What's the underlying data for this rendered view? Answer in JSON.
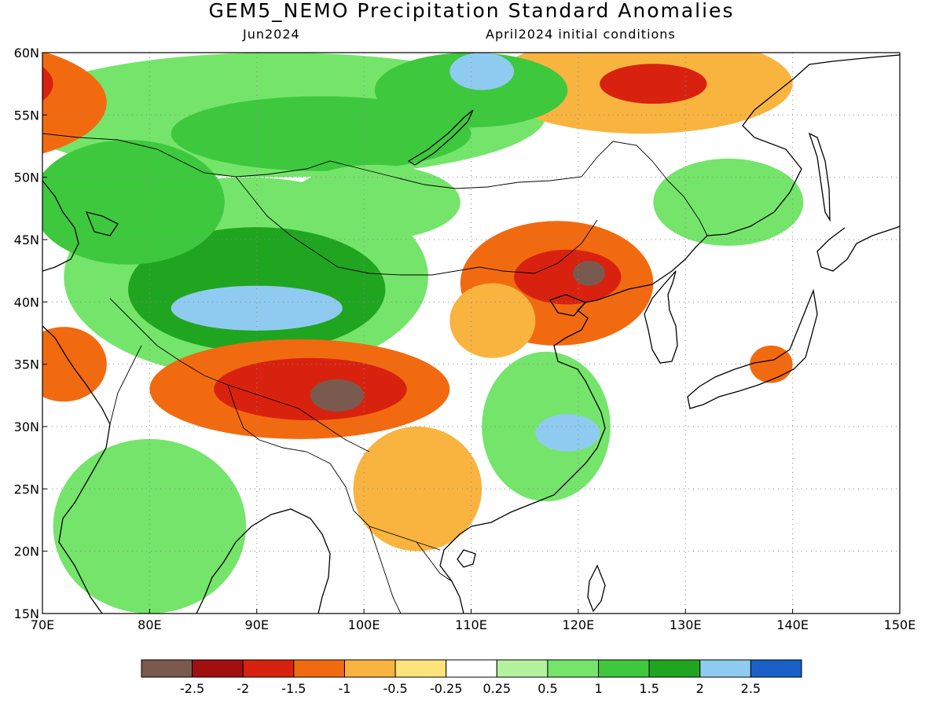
{
  "title": "GEM5_NEMO Precipitation Standard Anomalies",
  "subtitle_left": "Jun2024",
  "subtitle_right": "April2024 initial conditions",
  "chart_data": {
    "type": "heatmap",
    "xlim": [
      70,
      150
    ],
    "ylim": [
      15,
      60
    ],
    "x_ticks": [
      {
        "value": 70,
        "label": "70E"
      },
      {
        "value": 80,
        "label": "80E"
      },
      {
        "value": 90,
        "label": "90E"
      },
      {
        "value": 100,
        "label": "100E"
      },
      {
        "value": 110,
        "label": "110E"
      },
      {
        "value": 120,
        "label": "120E"
      },
      {
        "value": 130,
        "label": "130E"
      },
      {
        "value": 140,
        "label": "140E"
      },
      {
        "value": 150,
        "label": "150E"
      }
    ],
    "y_ticks": [
      {
        "value": 15,
        "label": "15N"
      },
      {
        "value": 20,
        "label": "20N"
      },
      {
        "value": 25,
        "label": "25N"
      },
      {
        "value": 30,
        "label": "30N"
      },
      {
        "value": 35,
        "label": "35N"
      },
      {
        "value": 40,
        "label": "40N"
      },
      {
        "value": 45,
        "label": "45N"
      },
      {
        "value": 50,
        "label": "50N"
      },
      {
        "value": 55,
        "label": "55N"
      },
      {
        "value": 60,
        "label": "60N"
      }
    ],
    "grid": "dotted",
    "colorbar": {
      "colors": [
        "#7a5a4e",
        "#a10f0f",
        "#d8220f",
        "#f26a10",
        "#f9b43f",
        "#fce37a",
        "#ffffff",
        "#b4f29e",
        "#74e56a",
        "#3ec83e",
        "#20a520",
        "#8fcbf0",
        "#1a60c8"
      ],
      "labels": [
        "-2.5",
        "-2",
        "-1.5",
        "-1",
        "-0.5",
        "-0.25",
        "0.25",
        "0.5",
        "1",
        "1.5",
        "2",
        "2.5"
      ]
    },
    "anomaly_regions": [
      {
        "lon": 62,
        "lat": 56,
        "rx": 14,
        "ry": 5,
        "value": -1.2
      },
      {
        "lon": 65,
        "lat": 57.5,
        "rx": 6,
        "ry": 2.5,
        "value": -1.7
      },
      {
        "lon": 126,
        "lat": 57.5,
        "rx": 14,
        "ry": 4,
        "value": -0.7
      },
      {
        "lon": 127,
        "lat": 57.5,
        "rx": 5,
        "ry": 1.6,
        "value": -1.6
      },
      {
        "lon": 92,
        "lat": 55,
        "rx": 25,
        "ry": 5,
        "value": 0.7
      },
      {
        "lon": 96,
        "lat": 53.5,
        "rx": 14,
        "ry": 3,
        "value": 1.2
      },
      {
        "lon": 110,
        "lat": 57,
        "rx": 9,
        "ry": 3,
        "value": 1.1
      },
      {
        "lon": 111,
        "lat": 58.5,
        "rx": 3,
        "ry": 1.5,
        "value": 2.3
      },
      {
        "lon": 89,
        "lat": 42,
        "rx": 17,
        "ry": 8,
        "value": 0.9
      },
      {
        "lon": 90,
        "lat": 41,
        "rx": 12,
        "ry": 5,
        "value": 1.5
      },
      {
        "lon": 90,
        "lat": 39.5,
        "rx": 8,
        "ry": 1.8,
        "value": 2.2
      },
      {
        "lon": 78,
        "lat": 48,
        "rx": 9,
        "ry": 5,
        "value": 1.0
      },
      {
        "lon": 101,
        "lat": 48,
        "rx": 8,
        "ry": 3,
        "value": 0.8
      },
      {
        "lon": 134,
        "lat": 48,
        "rx": 7,
        "ry": 3.5,
        "value": 0.9
      },
      {
        "lon": 118,
        "lat": 41.5,
        "rx": 9,
        "ry": 5,
        "value": -1.1
      },
      {
        "lon": 119,
        "lat": 42,
        "rx": 5,
        "ry": 2.2,
        "value": -1.7
      },
      {
        "lon": 121,
        "lat": 42.3,
        "rx": 1.5,
        "ry": 1,
        "value": -2.6
      },
      {
        "lon": 112,
        "lat": 38.5,
        "rx": 4,
        "ry": 3,
        "value": -1.0
      },
      {
        "lon": 94,
        "lat": 33,
        "rx": 14,
        "ry": 4,
        "value": -1.2
      },
      {
        "lon": 95,
        "lat": 33,
        "rx": 9,
        "ry": 2.5,
        "value": -1.8
      },
      {
        "lon": 97.5,
        "lat": 32.5,
        "rx": 2.5,
        "ry": 1.3,
        "value": -2.6
      },
      {
        "lon": 72,
        "lat": 35,
        "rx": 4,
        "ry": 3,
        "value": -1.4
      },
      {
        "lon": 105,
        "lat": 25,
        "rx": 6,
        "ry": 5,
        "value": -1.0
      },
      {
        "lon": 117,
        "lat": 30,
        "rx": 6,
        "ry": 6,
        "value": 0.9
      },
      {
        "lon": 119,
        "lat": 29.5,
        "rx": 3,
        "ry": 1.5,
        "value": 2.2
      },
      {
        "lon": 80,
        "lat": 22,
        "rx": 9,
        "ry": 7,
        "value": 0.8
      },
      {
        "lon": 138,
        "lat": 35,
        "rx": 2,
        "ry": 1.5,
        "value": -1.1
      }
    ]
  }
}
